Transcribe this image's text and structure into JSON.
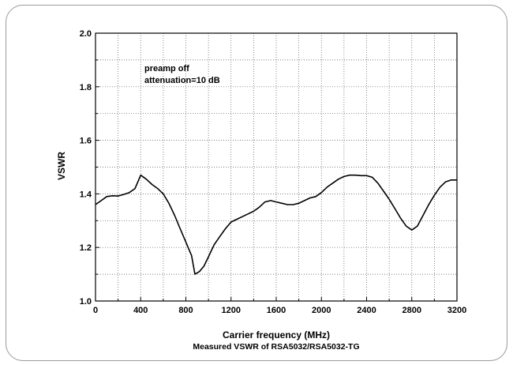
{
  "chart_data": {
    "type": "line",
    "title": "",
    "caption": "Measured VSWR of RSA5032/RSA5032-TG",
    "xlabel": "Carrier frequency (MHz)",
    "ylabel": "VSWR",
    "xlim": [
      0,
      3200
    ],
    "ylim": [
      1.0,
      2.0
    ],
    "x_ticks": [
      0,
      400,
      800,
      1200,
      1600,
      2000,
      2400,
      2800,
      3200
    ],
    "y_ticks": [
      1.0,
      1.2,
      1.4,
      1.6,
      1.8,
      2.0
    ],
    "y_tick_labels": [
      "1.0",
      "1.2",
      "1.4",
      "1.6",
      "1.8",
      "2.0"
    ],
    "grid": true,
    "line_color": "#000000",
    "annotations": [
      "preamp off",
      "attenuation=10 dB"
    ],
    "series": [
      {
        "x": [
          0,
          50,
          100,
          150,
          200,
          250,
          300,
          350,
          400,
          450,
          500,
          550,
          600,
          650,
          700,
          750,
          800,
          850,
          880,
          920,
          960,
          1000,
          1050,
          1100,
          1150,
          1200,
          1250,
          1300,
          1350,
          1400,
          1450,
          1500,
          1550,
          1600,
          1650,
          1700,
          1750,
          1800,
          1850,
          1900,
          1950,
          2000,
          2050,
          2100,
          2150,
          2200,
          2250,
          2300,
          2350,
          2400,
          2450,
          2500,
          2550,
          2600,
          2650,
          2700,
          2750,
          2800,
          2850,
          2900,
          2950,
          3000,
          3050,
          3100,
          3150,
          3200
        ],
        "y": [
          1.36,
          1.375,
          1.39,
          1.393,
          1.392,
          1.398,
          1.405,
          1.42,
          1.47,
          1.455,
          1.435,
          1.42,
          1.4,
          1.365,
          1.32,
          1.27,
          1.22,
          1.17,
          1.1,
          1.11,
          1.13,
          1.165,
          1.21,
          1.24,
          1.27,
          1.295,
          1.305,
          1.315,
          1.325,
          1.335,
          1.35,
          1.37,
          1.375,
          1.37,
          1.365,
          1.36,
          1.36,
          1.365,
          1.375,
          1.385,
          1.39,
          1.405,
          1.425,
          1.44,
          1.455,
          1.465,
          1.47,
          1.47,
          1.468,
          1.468,
          1.462,
          1.44,
          1.41,
          1.38,
          1.345,
          1.31,
          1.28,
          1.265,
          1.28,
          1.32,
          1.36,
          1.395,
          1.425,
          1.445,
          1.452,
          1.452
        ]
      }
    ]
  }
}
